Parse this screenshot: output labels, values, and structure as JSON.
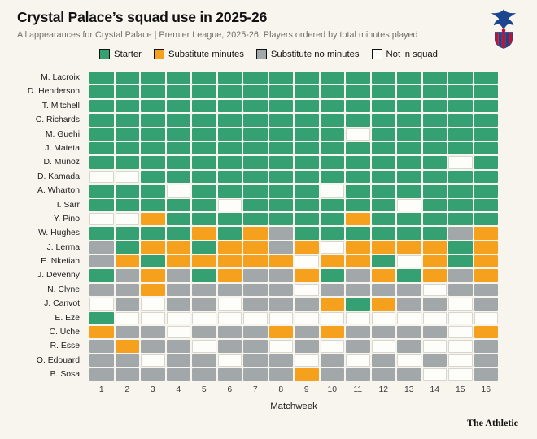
{
  "header": {
    "title": "Crystal Palace’s squad use in 2025-26",
    "subtitle": "All appearances for Crystal Palace | Premier League, 2025-26. Players ordered by total minutes played"
  },
  "crest": {
    "icon": "crystal-palace-crest",
    "blue": "#1b458f",
    "red": "#c4122e"
  },
  "legend": [
    {
      "label": "Starter",
      "color": "#35a173"
    },
    {
      "label": "Substitute minutes",
      "color": "#f6a11d"
    },
    {
      "label": "Substitute no minutes",
      "color": "#a2a7a9"
    },
    {
      "label": "Not in squad",
      "color": "#fdfdfa"
    }
  ],
  "chart_data": {
    "type": "heatmap",
    "title": "Crystal Palace’s squad use in 2025-26",
    "subtitle": "All appearances for Crystal Palace | Premier League, 2025-26. Players ordered by total minutes played",
    "xlabel": "Matchweek",
    "x": [
      1,
      2,
      3,
      4,
      5,
      6,
      7,
      8,
      9,
      10,
      11,
      12,
      13,
      14,
      15,
      16
    ],
    "state_legend": {
      "S": "Starter",
      "M": "Substitute minutes",
      "N": "Substitute no minutes",
      "X": "Not in squad"
    },
    "state_colors": {
      "S": "#35a173",
      "M": "#f6a11d",
      "N": "#a2a7a9",
      "X": "#fdfdfa"
    },
    "rows": [
      {
        "player": "M. Lacroix",
        "states": "SSSSSSSSSSSSSSSS"
      },
      {
        "player": "D. Henderson",
        "states": "SSSSSSSSSSSSSSSS"
      },
      {
        "player": "T. Mitchell",
        "states": "SSSSSSSSSSSSSSSS"
      },
      {
        "player": "C. Richards",
        "states": "SSSSSSSSSSSSSSSS"
      },
      {
        "player": "M. Guehi",
        "states": "SSSSSSSSSSXSSSSS"
      },
      {
        "player": "J. Mateta",
        "states": "SSSSSSSSSSSSSSSS"
      },
      {
        "player": "D. Munoz",
        "states": "SSSSSSSSSSSSSSXS"
      },
      {
        "player": "D. Kamada",
        "states": "XXSSSSSSSSSSSSSS"
      },
      {
        "player": "A. Wharton",
        "states": "SSSXSSSSSXSSSSSS"
      },
      {
        "player": "I. Sarr",
        "states": "SSSSSXSSSSSSXSSS"
      },
      {
        "player": "Y. Pino",
        "states": "XXMSSSSSSSMSSSSS"
      },
      {
        "player": "W. Hughes",
        "states": "SSSSMSMNSSSSSSNM"
      },
      {
        "player": "J. Lerma",
        "states": "NSMMSMMNMXMMMMSM"
      },
      {
        "player": "E. Nketiah",
        "states": "NMSMMMMMXMMSXMSM"
      },
      {
        "player": "J. Devenny",
        "states": "SNMNSMNNMSNMSMNM"
      },
      {
        "player": "N. Clyne",
        "states": "NNMNNNNNXNNNNXNN"
      },
      {
        "player": "J. Canvot",
        "states": "XNXNNXNNNMSMNNXN"
      },
      {
        "player": "E. Eze",
        "states": "SXXXXXXXXXXXXXXX"
      },
      {
        "player": "C. Uche",
        "states": "MNNXNNNMNMNNNNXM"
      },
      {
        "player": "R. Esse",
        "states": "NMNNXNNXNXNXNXXN"
      },
      {
        "player": "O. Edouard",
        "states": "NNXNNXNNXNXNXNXN"
      },
      {
        "player": "B. Sosa",
        "states": "NNNNNNNNMNNNNXXN"
      }
    ]
  },
  "footer": {
    "brand": "The Athletic"
  }
}
